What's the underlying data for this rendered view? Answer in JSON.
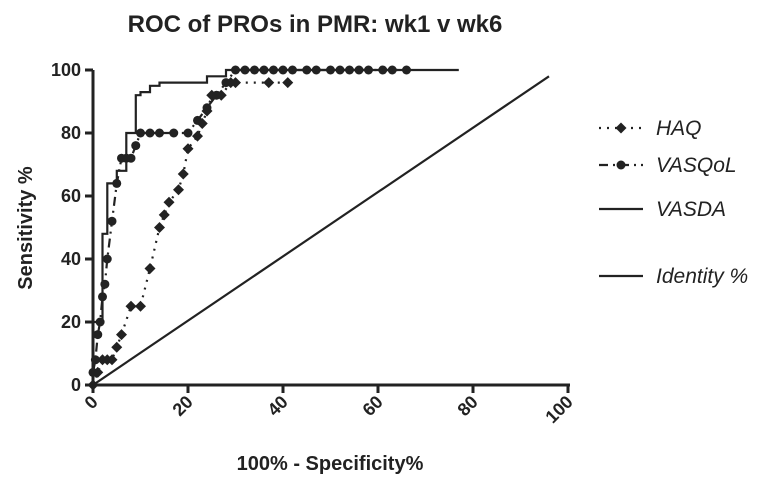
{
  "chart_data": {
    "type": "line",
    "title": "ROC of PROs in PMR: wk1 v wk6",
    "xlabel": "100% - Specificity%",
    "ylabel": "Sensitivity %",
    "xlim": [
      0,
      100
    ],
    "ylim": [
      0,
      100
    ],
    "x_ticks": [
      "0",
      "20",
      "40",
      "60",
      "80",
      "100"
    ],
    "y_ticks": [
      "0",
      "20",
      "40",
      "60",
      "80",
      "100"
    ],
    "grid": false,
    "legend_position": "right",
    "series": [
      {
        "name": "HAQ",
        "line_style": "dotted",
        "marker": "diamond",
        "x": [
          0,
          1,
          2,
          3,
          4,
          5,
          6,
          8,
          10,
          12,
          14,
          15,
          16,
          18,
          19,
          20,
          22,
          23,
          24,
          25,
          27,
          29,
          30,
          37,
          41
        ],
        "y": [
          0,
          4,
          8,
          8,
          8,
          12,
          16,
          25,
          25,
          37,
          50,
          54,
          58,
          62,
          67,
          75,
          79,
          83,
          87,
          92,
          92,
          96,
          96,
          96,
          96
        ]
      },
      {
        "name": "VASQoL",
        "line_style": "dash-dot",
        "marker": "circle",
        "x": [
          0,
          0.5,
          1,
          1.5,
          2,
          2.5,
          3,
          4,
          5,
          6,
          7,
          8,
          9,
          10,
          12,
          14,
          17,
          20,
          22,
          24,
          26,
          28,
          30,
          32,
          34,
          36,
          38,
          40,
          42,
          45,
          47,
          50,
          52,
          54,
          56,
          58,
          61,
          63,
          66
        ],
        "y": [
          4,
          8,
          16,
          20,
          28,
          32,
          40,
          52,
          64,
          72,
          72,
          72,
          76,
          80,
          80,
          80,
          80,
          80,
          84,
          88,
          92,
          96,
          100,
          100,
          100,
          100,
          100,
          100,
          100,
          100,
          100,
          100,
          100,
          100,
          100,
          100,
          100,
          100,
          100
        ]
      },
      {
        "name": "VASDA",
        "line_style": "solid",
        "marker": "none",
        "x": [
          0,
          0,
          2,
          2,
          3,
          3,
          5,
          5,
          7,
          7,
          9,
          9,
          10,
          10,
          12,
          12,
          14,
          14,
          24,
          24,
          28,
          28,
          77
        ],
        "y": [
          0,
          20,
          20,
          48,
          48,
          64,
          64,
          68,
          68,
          80,
          80,
          92,
          92,
          93,
          93,
          95,
          95,
          96,
          96,
          98,
          98,
          100,
          100
        ]
      },
      {
        "name": "Identity %",
        "line_style": "solid",
        "marker": "none",
        "x": [
          0,
          96
        ],
        "y": [
          0,
          98
        ]
      }
    ]
  },
  "colors": {
    "line": "#222222",
    "background": "#ffffff"
  }
}
